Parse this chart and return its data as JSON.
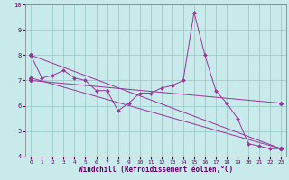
{
  "xlabel": "Windchill (Refroidissement éolien,°C)",
  "xlim": [
    -0.5,
    23.5
  ],
  "ylim": [
    4,
    10
  ],
  "yticks": [
    4,
    5,
    6,
    7,
    8,
    9,
    10
  ],
  "xticks": [
    0,
    1,
    2,
    3,
    4,
    5,
    6,
    7,
    8,
    9,
    10,
    11,
    12,
    13,
    14,
    15,
    16,
    17,
    18,
    19,
    20,
    21,
    22,
    23
  ],
  "bg_color": "#c8eaea",
  "line_color": "#993399",
  "grid_color": "#99cccc",
  "main_x": [
    0,
    1,
    2,
    3,
    4,
    5,
    6,
    7,
    8,
    9,
    10,
    11,
    12,
    13,
    14,
    15,
    16,
    17,
    18,
    19,
    20,
    21,
    22,
    23
  ],
  "main_y": [
    8.0,
    7.1,
    7.2,
    7.4,
    7.1,
    7.0,
    6.6,
    6.6,
    5.8,
    6.1,
    6.5,
    6.5,
    6.7,
    6.8,
    7.0,
    9.7,
    8.0,
    6.6,
    6.1,
    5.5,
    4.5,
    4.4,
    4.3,
    4.3
  ],
  "trend1_x": [
    0,
    23
  ],
  "trend1_y": [
    8.0,
    4.3
  ],
  "trend2_x": [
    0,
    23
  ],
  "trend2_y": [
    7.1,
    4.3
  ],
  "trend3_x": [
    0,
    23
  ],
  "trend3_y": [
    7.0,
    6.1
  ]
}
